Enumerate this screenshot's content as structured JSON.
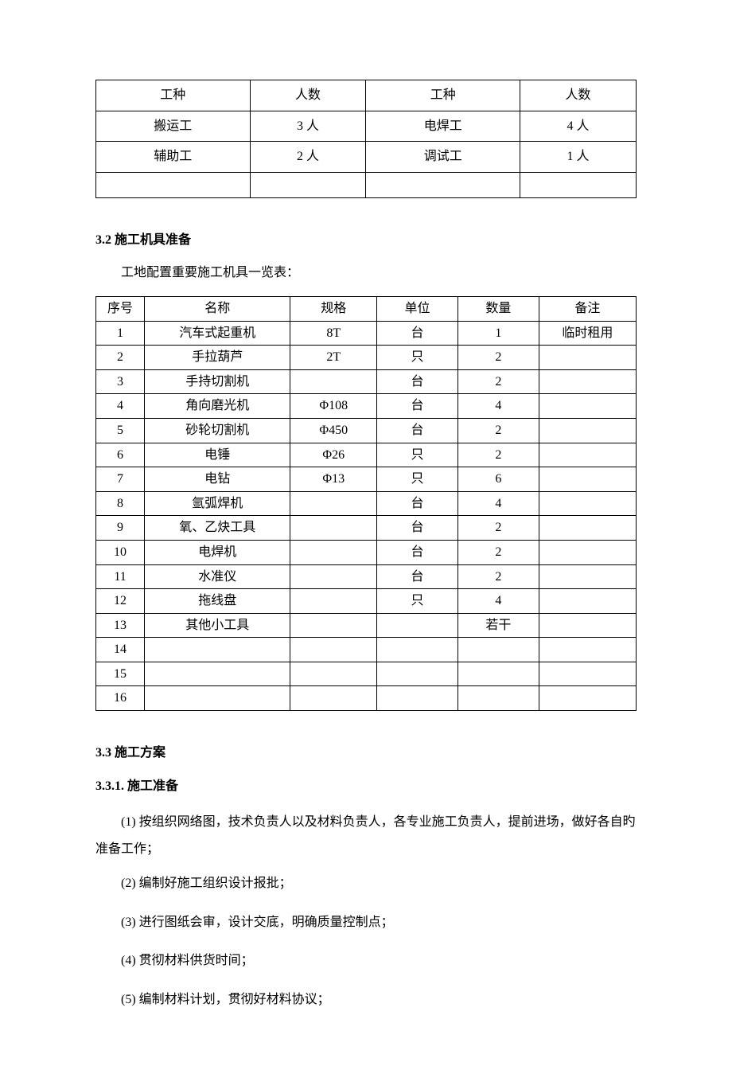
{
  "personnel_table": {
    "headers": [
      "工种",
      "人数",
      "工种",
      "人数"
    ],
    "rows": [
      [
        "搬运工",
        "3 人",
        "电焊工",
        "4 人"
      ],
      [
        "辅助工",
        "2 人",
        "调试工",
        "1 人"
      ],
      [
        "",
        "",
        "",
        ""
      ]
    ]
  },
  "section_3_2": {
    "heading": "3.2 施工机具准备",
    "intro": "工地配置重要施工机具一览表："
  },
  "equipment_table": {
    "headers": [
      "序号",
      "名称",
      "规格",
      "单位",
      "数量",
      "备注"
    ],
    "rows": [
      [
        "1",
        "汽车式起重机",
        "8T",
        "台",
        "1",
        "临时租用"
      ],
      [
        "2",
        "手拉葫芦",
        "2T",
        "只",
        "2",
        ""
      ],
      [
        "3",
        "手持切割机",
        "",
        "台",
        "2",
        ""
      ],
      [
        "4",
        "角向磨光机",
        "Φ108",
        "台",
        "4",
        ""
      ],
      [
        "5",
        "砂轮切割机",
        "Φ450",
        "台",
        "2",
        ""
      ],
      [
        "6",
        "电锤",
        "Φ26",
        "只",
        "2",
        ""
      ],
      [
        "7",
        "电钻",
        "Φ13",
        "只",
        "6",
        ""
      ],
      [
        "8",
        "氩弧焊机",
        "",
        "台",
        "4",
        ""
      ],
      [
        "9",
        "氧、乙炔工具",
        "",
        "台",
        "2",
        ""
      ],
      [
        "10",
        "电焊机",
        "",
        "台",
        "2",
        ""
      ],
      [
        "11",
        "水准仪",
        "",
        "台",
        "2",
        ""
      ],
      [
        "12",
        "拖线盘",
        "",
        "只",
        "4",
        ""
      ],
      [
        "13",
        "其他小工具",
        "",
        "",
        "若干",
        ""
      ],
      [
        "14",
        "",
        "",
        "",
        "",
        ""
      ],
      [
        "15",
        "",
        "",
        "",
        "",
        ""
      ],
      [
        "16",
        "",
        "",
        "",
        "",
        ""
      ]
    ]
  },
  "section_3_3": {
    "heading": "3.3 施工方案"
  },
  "section_3_3_1": {
    "heading": "3.3.1. 施工准备",
    "items": [
      "(1)  按组织网络图，技术负责人以及材料负责人，各专业施工负责人，提前进场，做好各自旳准备工作；",
      "(2)  编制好施工组织设计报批；",
      "(3)  进行图纸会审，设计交底，明确质量控制点；",
      "(4)  贯彻材料供货时间；",
      "(5)  编制材料计划，贯彻好材料协议；"
    ]
  }
}
